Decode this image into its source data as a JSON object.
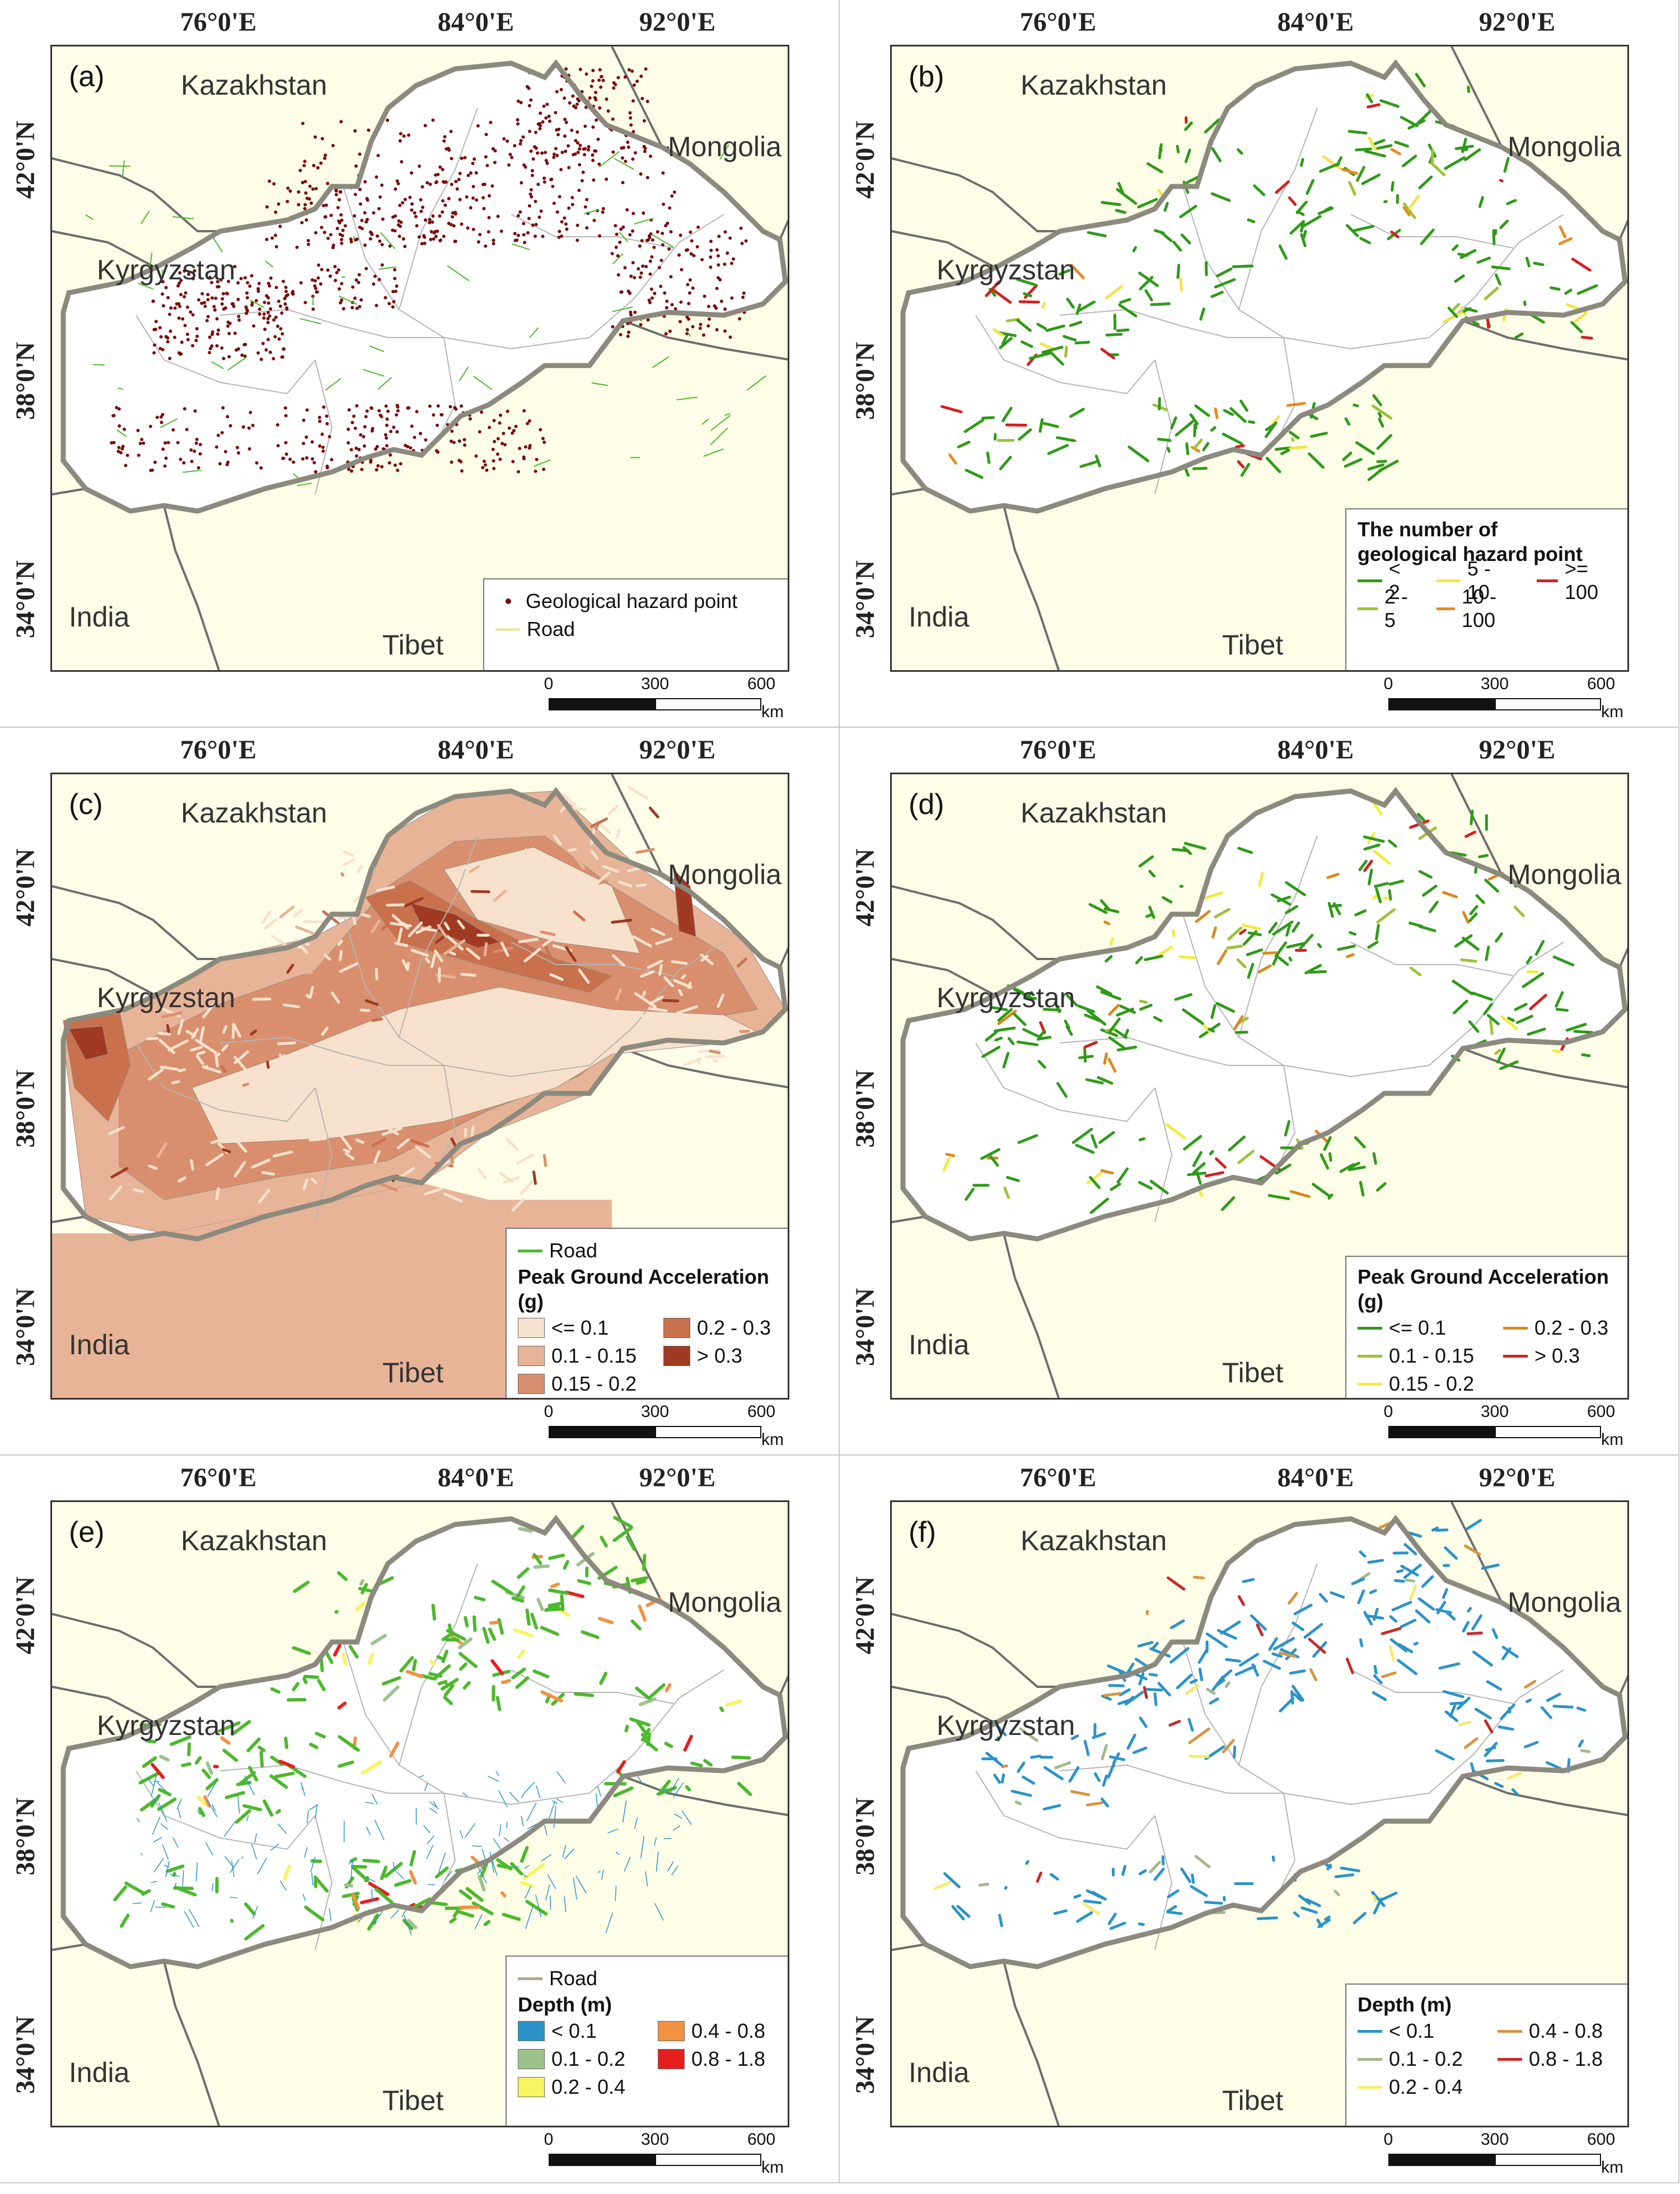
{
  "lon_labels": [
    "76°0'E",
    "84°0'E",
    "92°0'E"
  ],
  "lat_labels": [
    "42°0'N",
    "38°0'N",
    "34°0'N"
  ],
  "countries": {
    "kazakhstan": "Kazakhstan",
    "mongolia": "Mongolia",
    "kyrgyzstan": "Kyrgyzstan",
    "india": "India",
    "tibet": "Tibet"
  },
  "scale": {
    "ticks": [
      "0",
      "300",
      "600"
    ],
    "unit": "km"
  },
  "colors": {
    "outside": "#fdfde8",
    "region_fill": "#ffffff",
    "region_border": "#8c8a7e",
    "road": "#4db82e",
    "hazard_point": "#7a0c0c",
    "admin_lines": "#b5b5b5"
  },
  "panels": [
    {
      "tag": "(a)",
      "legend": {
        "items": [
          {
            "label": "Geological hazard point",
            "color": "#7a0c0c"
          },
          {
            "label": "Road",
            "color": "#e7e7a8"
          }
        ]
      }
    },
    {
      "tag": "(b)",
      "legend": {
        "title_line1": "The number of",
        "title_line2": "geological hazard point",
        "items": [
          {
            "label": "< 2",
            "color": "#2f9a18"
          },
          {
            "label": "5 - 10",
            "color": "#f2e34a"
          },
          {
            "label": ">= 100",
            "color": "#d32020"
          },
          {
            "label": "2 - 5",
            "color": "#9cc236"
          },
          {
            "label": "10 - 100",
            "color": "#e58a25"
          }
        ]
      }
    },
    {
      "tag": "(c)",
      "legend": {
        "road": "Road",
        "title": "Peak Ground Acceleration (g)",
        "items": [
          {
            "label": "<= 0.1",
            "color": "#f8e1cc"
          },
          {
            "label": "0.2 - 0.3",
            "color": "#c9704d"
          },
          {
            "label": "0.1 - 0.15",
            "color": "#e7b497"
          },
          {
            "label": "> 0.3",
            "color": "#a03a22"
          },
          {
            "label": "0.15 - 0.2",
            "color": "#d98f6d"
          }
        ]
      }
    },
    {
      "tag": "(d)",
      "legend": {
        "title": "Peak Ground Acceleration (g)",
        "items": [
          {
            "label": "<= 0.1",
            "color": "#2f9a18"
          },
          {
            "label": "0.2 - 0.3",
            "color": "#d9891c"
          },
          {
            "label": "0.1 - 0.15",
            "color": "#9cc236"
          },
          {
            "label": "> 0.3",
            "color": "#d32020"
          },
          {
            "label": "0.15 - 0.2",
            "color": "#f2ec3a"
          }
        ]
      }
    },
    {
      "tag": "(e)",
      "legend": {
        "road": "Road",
        "title": "Depth (m)",
        "items": [
          {
            "label": "< 0.1",
            "color": "#2b93c8"
          },
          {
            "label": "0.4 - 0.8",
            "color": "#f29142"
          },
          {
            "label": "0.1 - 0.2",
            "color": "#9cc28c"
          },
          {
            "label": "0.8 - 1.8",
            "color": "#e61e1e"
          },
          {
            "label": "0.2 - 0.4",
            "color": "#f8f35e"
          }
        ]
      }
    },
    {
      "tag": "(f)",
      "legend": {
        "title": "Depth (m)",
        "items": [
          {
            "label": "< 0.1",
            "color": "#2b93c8"
          },
          {
            "label": "0.4 - 0.8",
            "color": "#d59540"
          },
          {
            "label": "0.1 - 0.2",
            "color": "#a3b88c"
          },
          {
            "label": "0.8 - 1.8",
            "color": "#c8282a"
          },
          {
            "label": "0.2 - 0.4",
            "color": "#f4ec6a"
          }
        ]
      }
    }
  ]
}
